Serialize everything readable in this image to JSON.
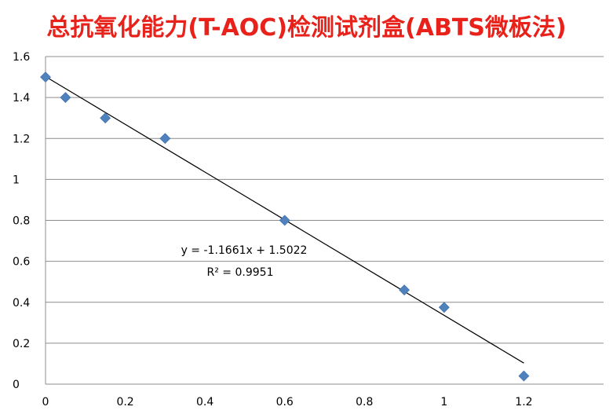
{
  "chart_data": {
    "type": "scatter",
    "title": "总抗氧化能力(T-AOC)检测试剂盒(ABTS微板法)",
    "title_color": "#e8221b",
    "xlabel": "",
    "ylabel": "",
    "xlim": [
      0,
      1.4
    ],
    "ylim": [
      0,
      1.6
    ],
    "x_ticks": [
      "0",
      "0.2",
      "0.4",
      "0.6",
      "0.8",
      "1",
      "1.2"
    ],
    "y_ticks": [
      "0",
      "0.2",
      "0.4",
      "0.6",
      "0.8",
      "1",
      "1.2",
      "1.4",
      "1.6"
    ],
    "grid": "horizontal",
    "legend": "none",
    "marker": "diamond",
    "marker_color": "#4f81bd",
    "series": [
      {
        "x": [
          0,
          0.05,
          0.15,
          0.3,
          0.6,
          0.9,
          1.0,
          1.2
        ],
        "y": [
          1.5,
          1.4,
          1.3,
          1.2,
          0.8,
          0.46,
          0.375,
          0.04
        ]
      }
    ],
    "trendline": {
      "slope": -1.1661,
      "intercept": 1.5022,
      "x_range": [
        0,
        1.2
      ],
      "color": "#000000"
    },
    "annotations": {
      "equation": "y = -1.1661x + 1.5022",
      "r_squared": "R² = 0.9951"
    }
  }
}
